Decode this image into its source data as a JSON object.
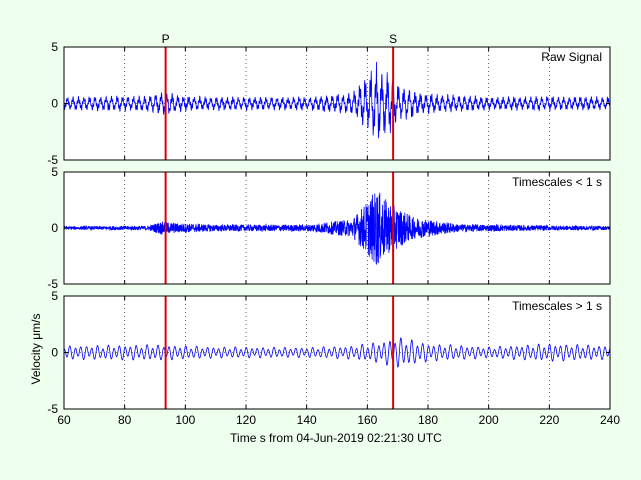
{
  "figure": {
    "background": "#eeffee",
    "xlabel": "Time s from 04-Jun-2019 02:21:30 UTC",
    "ylabel": "Velocity μm/s"
  },
  "chart_data": [
    {
      "type": "line",
      "title": "Raw Signal",
      "xlim": [
        60,
        240
      ],
      "ylim": [
        -5,
        5
      ],
      "xticks": [
        60,
        80,
        100,
        120,
        140,
        160,
        180,
        200,
        220,
        240
      ],
      "yticks": [
        -5,
        0,
        5
      ],
      "grid": "dotted",
      "series": [
        {
          "color": "#0000ff",
          "amplitude_profile": [
            [
              60,
              0.55
            ],
            [
              88,
              0.7
            ],
            [
              93,
              1.0
            ],
            [
              100,
              0.6
            ],
            [
              140,
              0.55
            ],
            [
              155,
              0.9
            ],
            [
              160,
              2.4
            ],
            [
              163,
              3.2
            ],
            [
              166,
              2.8
            ],
            [
              170,
              1.6
            ],
            [
              178,
              0.9
            ],
            [
              200,
              0.55
            ],
            [
              220,
              0.6
            ],
            [
              240,
              0.55
            ]
          ]
        }
      ],
      "markers": [
        {
          "label": "P",
          "x": 93.5,
          "color": "#dd0000"
        },
        {
          "label": "S",
          "x": 168.5,
          "color": "#dd0000"
        }
      ]
    },
    {
      "type": "line",
      "title": "Timescales < 1 s",
      "xlim": [
        60,
        240
      ],
      "ylim": [
        -5,
        5
      ],
      "xticks": [
        60,
        80,
        100,
        120,
        140,
        160,
        180,
        200,
        220,
        240
      ],
      "yticks": [
        -5,
        0,
        5
      ],
      "grid": "dotted",
      "series": [
        {
          "color": "#0000ff",
          "amplitude_profile": [
            [
              60,
              0.15
            ],
            [
              88,
              0.2
            ],
            [
              92,
              0.6
            ],
            [
              97,
              0.45
            ],
            [
              110,
              0.3
            ],
            [
              140,
              0.3
            ],
            [
              155,
              0.8
            ],
            [
              160,
              2.4
            ],
            [
              163,
              3.5
            ],
            [
              167,
              2.3
            ],
            [
              175,
              1.0
            ],
            [
              190,
              0.35
            ],
            [
              220,
              0.22
            ],
            [
              240,
              0.18
            ]
          ]
        }
      ],
      "markers": [
        {
          "x": 93.5,
          "color": "#dd0000"
        },
        {
          "x": 168.5,
          "color": "#dd0000"
        }
      ]
    },
    {
      "type": "line",
      "title": "Timescales > 1 s",
      "xlim": [
        60,
        240
      ],
      "ylim": [
        -5,
        5
      ],
      "xticks": [
        60,
        80,
        100,
        120,
        140,
        160,
        180,
        200,
        220,
        240
      ],
      "yticks": [
        -5,
        0,
        5
      ],
      "grid": "dotted",
      "series": [
        {
          "color": "#0000ff",
          "amplitude_profile": [
            [
              60,
              0.6
            ],
            [
              90,
              0.7
            ],
            [
              110,
              0.5
            ],
            [
              140,
              0.45
            ],
            [
              155,
              0.6
            ],
            [
              165,
              1.0
            ],
            [
              170,
              1.4
            ],
            [
              180,
              0.8
            ],
            [
              200,
              0.5
            ],
            [
              220,
              0.8
            ],
            [
              240,
              0.6
            ]
          ]
        }
      ],
      "markers": [
        {
          "x": 93.5,
          "color": "#dd0000"
        },
        {
          "x": 168.5,
          "color": "#dd0000"
        }
      ]
    }
  ]
}
